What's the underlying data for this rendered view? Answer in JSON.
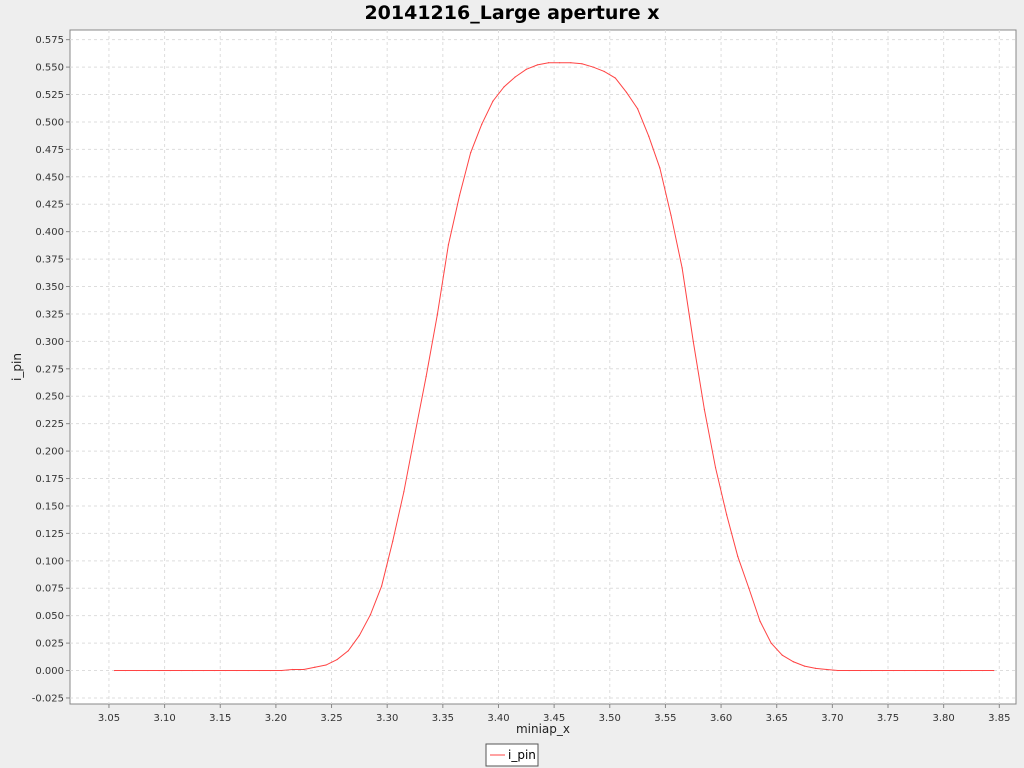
{
  "chart_data": {
    "type": "line",
    "title": "20141216_Large aperture x",
    "xlabel": "miniap_x",
    "ylabel": "i_pin",
    "xlim": [
      3.015,
      3.865
    ],
    "ylim": [
      -0.0305,
      0.5838
    ],
    "x_ticks": [
      "3.05",
      "3.10",
      "3.15",
      "3.20",
      "3.25",
      "3.30",
      "3.35",
      "3.40",
      "3.45",
      "3.50",
      "3.55",
      "3.60",
      "3.65",
      "3.70",
      "3.75",
      "3.80",
      "3.85"
    ],
    "y_ticks": [
      "-0.025",
      "0.000",
      "0.025",
      "0.050",
      "0.075",
      "0.100",
      "0.125",
      "0.150",
      "0.175",
      "0.200",
      "0.225",
      "0.250",
      "0.275",
      "0.300",
      "0.325",
      "0.350",
      "0.375",
      "0.400",
      "0.425",
      "0.450",
      "0.475",
      "0.500",
      "0.525",
      "0.550",
      "0.575"
    ],
    "grid": true,
    "legend_position": "bottom-center",
    "series": [
      {
        "name": "i_pin",
        "color": "#ff4444",
        "x": [
          3.055,
          3.065,
          3.075,
          3.085,
          3.095,
          3.105,
          3.115,
          3.125,
          3.135,
          3.145,
          3.155,
          3.165,
          3.175,
          3.185,
          3.195,
          3.205,
          3.215,
          3.225,
          3.235,
          3.245,
          3.255,
          3.265,
          3.275,
          3.285,
          3.295,
          3.305,
          3.315,
          3.325,
          3.335,
          3.345,
          3.355,
          3.365,
          3.375,
          3.385,
          3.395,
          3.405,
          3.415,
          3.425,
          3.435,
          3.445,
          3.455,
          3.465,
          3.475,
          3.485,
          3.495,
          3.505,
          3.515,
          3.525,
          3.535,
          3.545,
          3.555,
          3.565,
          3.575,
          3.585,
          3.595,
          3.605,
          3.615,
          3.625,
          3.635,
          3.645,
          3.655,
          3.665,
          3.675,
          3.685,
          3.695,
          3.705,
          3.715,
          3.725,
          3.735,
          3.745,
          3.755,
          3.765,
          3.775,
          3.785,
          3.795,
          3.805,
          3.815,
          3.825,
          3.835,
          3.845
        ],
        "y": [
          0.0,
          0.0,
          0.0,
          0.0,
          0.0,
          0.0,
          0.0,
          0.0,
          0.0,
          0.0,
          0.0,
          0.0,
          0.0,
          0.0,
          0.0,
          0.0,
          0.001,
          0.001,
          0.003,
          0.005,
          0.01,
          0.018,
          0.032,
          0.051,
          0.077,
          0.118,
          0.163,
          0.216,
          0.268,
          0.324,
          0.388,
          0.433,
          0.472,
          0.498,
          0.519,
          0.532,
          0.541,
          0.548,
          0.552,
          0.554,
          0.554,
          0.554,
          0.553,
          0.55,
          0.546,
          0.54,
          0.527,
          0.512,
          0.487,
          0.458,
          0.415,
          0.367,
          0.3,
          0.238,
          0.185,
          0.142,
          0.104,
          0.075,
          0.045,
          0.025,
          0.014,
          0.008,
          0.004,
          0.002,
          0.001,
          0.0,
          0.0,
          0.0,
          0.0,
          0.0,
          0.0,
          0.0,
          0.0,
          0.0,
          0.0,
          0.0,
          0.0,
          0.0,
          0.0,
          0.0
        ]
      }
    ]
  }
}
